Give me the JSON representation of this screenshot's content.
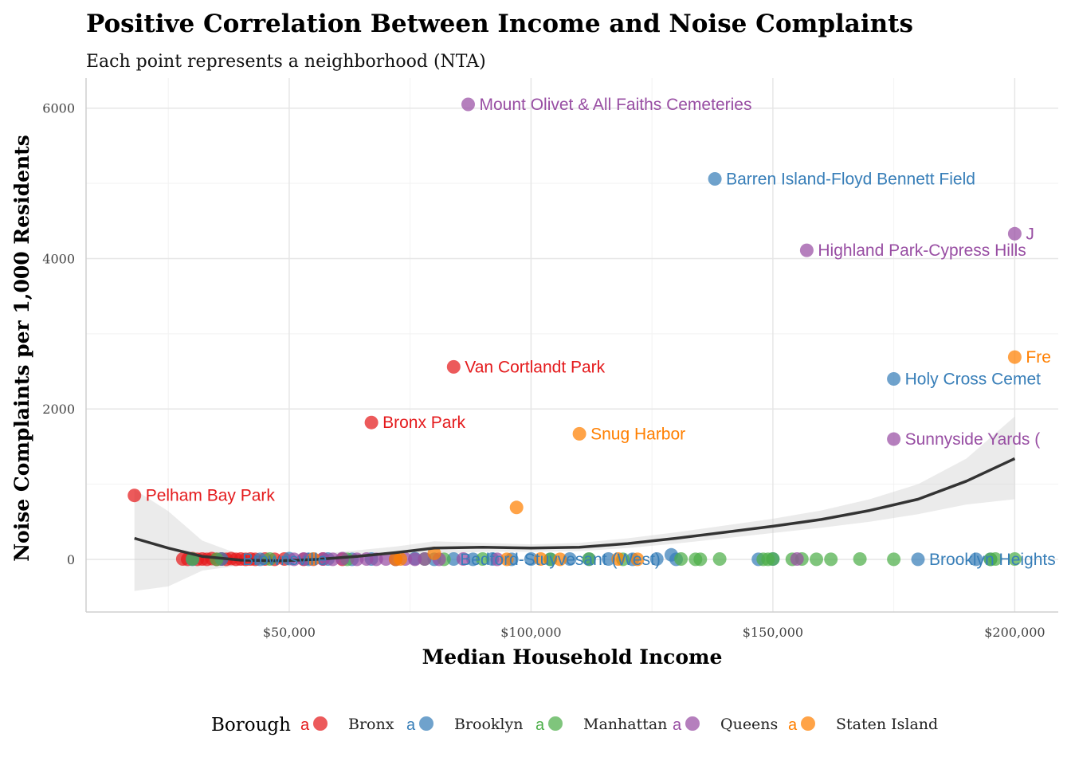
{
  "chart_data": {
    "type": "scatter",
    "title": "Positive Correlation Between Income and Noise Complaints",
    "subtitle": "Each point represents a neighborhood (NTA)",
    "xlabel": "Median Household Income",
    "ylabel": "Noise Complaints per 1,000 Residents",
    "xlim": [
      8000,
      209000
    ],
    "ylim": [
      -700,
      6400
    ],
    "x_ticks": [
      50000,
      100000,
      150000,
      200000
    ],
    "x_tick_labels": [
      "$50,000",
      "$100,000",
      "$150,000",
      "$200,000"
    ],
    "y_ticks": [
      0,
      2000,
      4000,
      6000
    ],
    "y_tick_labels": [
      "0",
      "2000",
      "4000",
      "6000"
    ],
    "grid": true,
    "legend": {
      "title": "Borough",
      "placement": "bottom",
      "key_glyph": "a",
      "entries": [
        "Bronx",
        "Brooklyn",
        "Manhattan",
        "Queens",
        "Staten Island"
      ]
    },
    "colors": {
      "Bronx": "#e41a1c",
      "Brooklyn": "#377eb8",
      "Manhattan": "#4daf4a",
      "Queens": "#984ea3",
      "Staten Island": "#ff7f00",
      "smooth_line": "#333333",
      "smooth_ribbon": "#d3d3d3"
    },
    "series": [
      {
        "name": "Bronx",
        "points": [
          [
            18000,
            850
          ],
          [
            84000,
            2560
          ],
          [
            67000,
            1820
          ],
          [
            28000,
            5
          ],
          [
            29000,
            0
          ],
          [
            30000,
            10
          ],
          [
            31000,
            0
          ],
          [
            32000,
            5
          ],
          [
            33000,
            0
          ],
          [
            34000,
            10
          ],
          [
            35000,
            0
          ],
          [
            36000,
            5
          ],
          [
            37000,
            0
          ],
          [
            38000,
            10
          ],
          [
            39000,
            0
          ],
          [
            40000,
            5
          ],
          [
            41000,
            0
          ],
          [
            42000,
            5
          ],
          [
            43000,
            0
          ],
          [
            45000,
            5
          ],
          [
            47000,
            0
          ],
          [
            49000,
            5
          ],
          [
            53000,
            0
          ],
          [
            57000,
            5
          ],
          [
            61000,
            0
          ]
        ]
      },
      {
        "name": "Brooklyn",
        "points": [
          [
            138000,
            5060
          ],
          [
            175000,
            2400
          ],
          [
            180000,
            0
          ],
          [
            30000,
            0
          ],
          [
            36000,
            5
          ],
          [
            44000,
            0
          ],
          [
            50000,
            10
          ],
          [
            54000,
            0
          ],
          [
            58000,
            5
          ],
          [
            63000,
            0
          ],
          [
            67000,
            5
          ],
          [
            72000,
            0
          ],
          [
            76000,
            10
          ],
          [
            80000,
            0
          ],
          [
            84000,
            5
          ],
          [
            88000,
            0
          ],
          [
            92000,
            5
          ],
          [
            96000,
            0
          ],
          [
            100000,
            5
          ],
          [
            104000,
            0
          ],
          [
            108000,
            5
          ],
          [
            112000,
            0
          ],
          [
            116000,
            5
          ],
          [
            121000,
            0
          ],
          [
            126000,
            5
          ],
          [
            129000,
            60
          ],
          [
            130000,
            0
          ],
          [
            147000,
            0
          ],
          [
            150000,
            5
          ],
          [
            192000,
            0
          ],
          [
            195000,
            0
          ]
        ]
      },
      {
        "name": "Manhattan",
        "points": [
          [
            30000,
            5
          ],
          [
            35000,
            0
          ],
          [
            46000,
            5
          ],
          [
            62000,
            0
          ],
          [
            78000,
            5
          ],
          [
            82000,
            0
          ],
          [
            90000,
            5
          ],
          [
            104000,
            0
          ],
          [
            112000,
            5
          ],
          [
            119000,
            0
          ],
          [
            131000,
            5
          ],
          [
            134000,
            0
          ],
          [
            135000,
            0
          ],
          [
            139000,
            5
          ],
          [
            148000,
            0
          ],
          [
            149000,
            0
          ],
          [
            150000,
            5
          ],
          [
            154000,
            0
          ],
          [
            156000,
            5
          ],
          [
            159000,
            0
          ],
          [
            162000,
            0
          ],
          [
            168000,
            5
          ],
          [
            175000,
            0
          ],
          [
            195000,
            0
          ],
          [
            196000,
            5
          ],
          [
            200000,
            5
          ]
        ]
      },
      {
        "name": "Queens",
        "points": [
          [
            87000,
            6050
          ],
          [
            157000,
            4110
          ],
          [
            200000,
            4330
          ],
          [
            175000,
            1600
          ],
          [
            51000,
            0
          ],
          [
            53000,
            5
          ],
          [
            55000,
            0
          ],
          [
            57000,
            5
          ],
          [
            59000,
            0
          ],
          [
            61000,
            10
          ],
          [
            64000,
            0
          ],
          [
            66000,
            5
          ],
          [
            68000,
            0
          ],
          [
            70000,
            5
          ],
          [
            72000,
            0
          ],
          [
            74000,
            5
          ],
          [
            76000,
            0
          ],
          [
            78000,
            5
          ],
          [
            81000,
            0
          ],
          [
            86000,
            5
          ],
          [
            93000,
            0
          ],
          [
            155000,
            5
          ]
        ]
      },
      {
        "name": "Staten Island",
        "points": [
          [
            200000,
            2690
          ],
          [
            110000,
            1670
          ],
          [
            97000,
            690
          ],
          [
            80000,
            80
          ],
          [
            55000,
            5
          ],
          [
            72000,
            0
          ],
          [
            73000,
            5
          ],
          [
            95000,
            0
          ],
          [
            102000,
            5
          ],
          [
            106000,
            0
          ],
          [
            118000,
            5
          ],
          [
            122000,
            0
          ]
        ]
      }
    ],
    "annotations": [
      {
        "text": "Mount Olivet & All Faiths Cemeteries",
        "x": 87000,
        "y": 6050,
        "series": "Queens"
      },
      {
        "text": "Barren Island-Floyd Bennett Field",
        "x": 138000,
        "y": 5060,
        "series": "Brooklyn"
      },
      {
        "text": "J",
        "x": 200000,
        "y": 4330,
        "series": "Queens"
      },
      {
        "text": "Highland Park-Cypress Hills",
        "x": 157000,
        "y": 4110,
        "series": "Queens"
      },
      {
        "text": "Fre",
        "x": 200000,
        "y": 2690,
        "series": "Staten Island"
      },
      {
        "text": "Holy Cross Cemet",
        "x": 175000,
        "y": 2400,
        "series": "Brooklyn"
      },
      {
        "text": "Van Cortlandt Park",
        "x": 84000,
        "y": 2560,
        "series": "Bronx"
      },
      {
        "text": "Bronx Park",
        "x": 67000,
        "y": 1820,
        "series": "Bronx"
      },
      {
        "text": "Snug Harbor",
        "x": 110000,
        "y": 1670,
        "series": "Staten Island"
      },
      {
        "text": "Sunnyside Yards (",
        "x": 175000,
        "y": 1600,
        "series": "Queens"
      },
      {
        "text": "Pelham Bay Park",
        "x": 18000,
        "y": 850,
        "series": "Bronx"
      },
      {
        "text": "Brownsville",
        "x": 38000,
        "y": 0,
        "series": "Brooklyn"
      },
      {
        "text": "Bedford-Stuyvesant (West)",
        "x": 83000,
        "y": 0,
        "series": "Brooklyn"
      },
      {
        "text": "Brooklyn Heights",
        "x": 180000,
        "y": 0,
        "series": "Brooklyn"
      }
    ],
    "smooth": {
      "x": [
        18000,
        25000,
        32000,
        40000,
        48000,
        56000,
        64000,
        72000,
        80000,
        90000,
        100000,
        110000,
        120000,
        130000,
        140000,
        150000,
        160000,
        170000,
        180000,
        190000,
        200000
      ],
      "y": [
        280,
        150,
        40,
        -10,
        -20,
        0,
        40,
        90,
        150,
        160,
        150,
        160,
        210,
        280,
        360,
        440,
        530,
        650,
        800,
        1040,
        1340
      ],
      "lower": [
        -420,
        -360,
        -150,
        -80,
        -70,
        -60,
        -30,
        20,
        70,
        100,
        100,
        110,
        150,
        210,
        280,
        350,
        420,
        500,
        600,
        730,
        800
      ],
      "upper": [
        930,
        640,
        250,
        60,
        30,
        70,
        120,
        170,
        240,
        220,
        200,
        220,
        280,
        360,
        450,
        540,
        650,
        800,
        1000,
        1340,
        1900
      ]
    }
  }
}
